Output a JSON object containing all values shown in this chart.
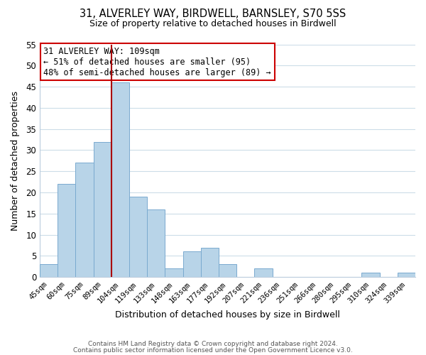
{
  "title": "31, ALVERLEY WAY, BIRDWELL, BARNSLEY, S70 5SS",
  "subtitle": "Size of property relative to detached houses in Birdwell",
  "xlabel": "Distribution of detached houses by size in Birdwell",
  "ylabel": "Number of detached properties",
  "bar_color": "#b8d4e8",
  "bar_edge_color": "#7aaacf",
  "highlight_line_color": "#aa0000",
  "categories": [
    "45sqm",
    "60sqm",
    "75sqm",
    "89sqm",
    "104sqm",
    "119sqm",
    "133sqm",
    "148sqm",
    "163sqm",
    "177sqm",
    "192sqm",
    "207sqm",
    "221sqm",
    "236sqm",
    "251sqm",
    "266sqm",
    "280sqm",
    "295sqm",
    "310sqm",
    "324sqm",
    "339sqm"
  ],
  "values": [
    3,
    22,
    27,
    32,
    46,
    19,
    16,
    2,
    6,
    7,
    3,
    0,
    2,
    0,
    0,
    0,
    0,
    0,
    1,
    0,
    1
  ],
  "highlight_index": 4,
  "ylim": [
    0,
    55
  ],
  "yticks": [
    0,
    5,
    10,
    15,
    20,
    25,
    30,
    35,
    40,
    45,
    50,
    55
  ],
  "annotation_line1": "31 ALVERLEY WAY: 109sqm",
  "annotation_line2": "← 51% of detached houses are smaller (95)",
  "annotation_line3": "48% of semi-detached houses are larger (89) →",
  "footer1": "Contains HM Land Registry data © Crown copyright and database right 2024.",
  "footer2": "Contains public sector information licensed under the Open Government Licence v3.0.",
  "background_color": "#ffffff",
  "grid_color": "#ccdde8",
  "annotation_box_color": "#ffffff",
  "annotation_box_edge": "#cc0000",
  "figsize": [
    6.0,
    5.0
  ],
  "dpi": 100
}
